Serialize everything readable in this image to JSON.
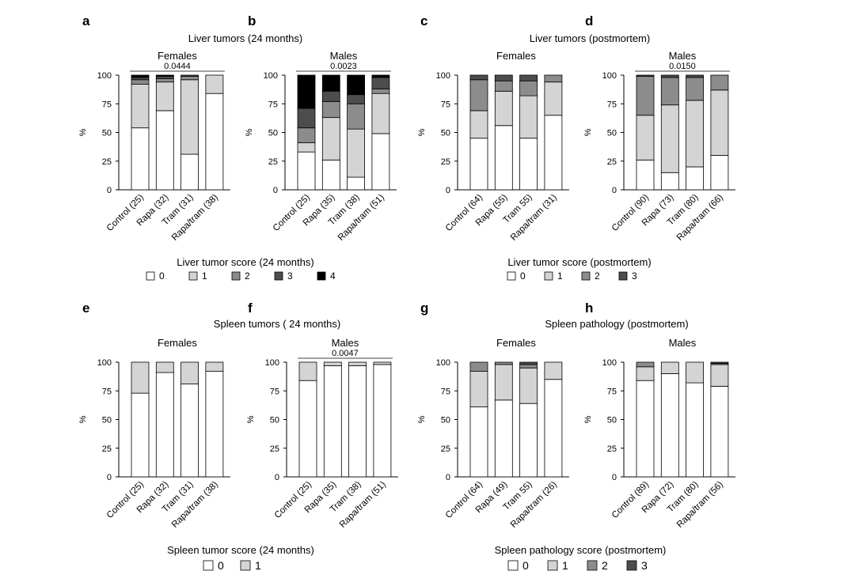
{
  "colors": {
    "0": "#ffffff",
    "1": "#d4d4d4",
    "2": "#8c8c8c",
    "3": "#4d4d4d",
    "4": "#000000",
    "axis": "#000000"
  },
  "sections": [
    {
      "id": "ab",
      "title": "Liver tumors (24 months)"
    },
    {
      "id": "cd",
      "title": "Liver tumors (postmortem)"
    },
    {
      "id": "ef",
      "title": "Spleen tumors ( 24 months)"
    },
    {
      "id": "gh",
      "title": "Spleen pathology (postmortem)"
    }
  ],
  "legends": [
    {
      "id": "liver24",
      "title": "Liver tumor score (24 months)",
      "items": [
        "0",
        "1",
        "2",
        "3",
        "4"
      ]
    },
    {
      "id": "liverpm",
      "title": "Liver tumor score (postmortem)",
      "items": [
        "0",
        "1",
        "2",
        "3"
      ]
    },
    {
      "id": "spleen24",
      "title": "Spleen tumor score (24 months)",
      "items": [
        "0",
        "1"
      ]
    },
    {
      "id": "spleenpm",
      "title": "Spleen pathology score (postmortem)",
      "items": [
        "0",
        "1",
        "2",
        "3"
      ]
    }
  ],
  "chart_data": [
    {
      "panel": "a",
      "type": "bar",
      "stacked": true,
      "title": "Females",
      "ylabel": "%",
      "ylim": [
        0,
        100
      ],
      "yticks": [
        0,
        25,
        50,
        75,
        100
      ],
      "categories": [
        "Control (25)",
        "Rapa (32)",
        "Tram (31)",
        "Rapa/tram (38)"
      ],
      "stack_keys": [
        "0",
        "1",
        "2",
        "3",
        "4"
      ],
      "stacks": [
        [
          54,
          38,
          4,
          2,
          2
        ],
        [
          69,
          25,
          3,
          2,
          1
        ],
        [
          31,
          65,
          3,
          1,
          0
        ],
        [
          84,
          16,
          0,
          0,
          0
        ]
      ],
      "pvalue": {
        "text": "0.0444",
        "from": 0,
        "to": 3
      }
    },
    {
      "panel": "b",
      "type": "bar",
      "stacked": true,
      "title": "Males",
      "ylabel": "%",
      "ylim": [
        0,
        100
      ],
      "yticks": [
        0,
        25,
        50,
        75,
        100
      ],
      "categories": [
        "Control (25)",
        "Rapa (35)",
        "Tram (38)",
        "Rapa/tram (51)"
      ],
      "stack_keys": [
        "0",
        "1",
        "2",
        "3",
        "4"
      ],
      "stacks": [
        [
          33,
          8,
          13,
          17,
          29
        ],
        [
          26,
          37,
          14,
          9,
          14
        ],
        [
          11,
          42,
          22,
          8,
          17
        ],
        [
          49,
          35,
          4,
          10,
          2
        ]
      ],
      "pvalue": {
        "text": "0.0023",
        "from": 0,
        "to": 3
      }
    },
    {
      "panel": "c",
      "type": "bar",
      "stacked": true,
      "title": "Females",
      "ylabel": "%",
      "ylim": [
        0,
        100
      ],
      "yticks": [
        0,
        25,
        50,
        75,
        100
      ],
      "categories": [
        "Control (64)",
        "Rapa (55)",
        "Tram 55)",
        "Rapa/tram (31)"
      ],
      "stack_keys": [
        "0",
        "1",
        "2",
        "3"
      ],
      "stacks": [
        [
          45,
          24,
          27,
          4
        ],
        [
          56,
          30,
          9,
          5
        ],
        [
          45,
          37,
          13,
          5
        ],
        [
          65,
          29,
          6,
          0
        ]
      ]
    },
    {
      "panel": "d",
      "type": "bar",
      "stacked": true,
      "title": "Males",
      "ylabel": "%",
      "ylim": [
        0,
        100
      ],
      "yticks": [
        0,
        25,
        50,
        75,
        100
      ],
      "categories": [
        "Control (90)",
        "Rapa (73)",
        "Tram (80)",
        "Rapa/tram (66)"
      ],
      "stack_keys": [
        "0",
        "1",
        "2",
        "3"
      ],
      "stacks": [
        [
          26,
          39,
          34,
          1
        ],
        [
          15,
          59,
          24,
          2
        ],
        [
          20,
          58,
          20,
          2
        ],
        [
          30,
          57,
          13,
          0
        ]
      ],
      "pvalue": {
        "text": "0.0150",
        "from": 0,
        "to": 3
      }
    },
    {
      "panel": "e",
      "type": "bar",
      "stacked": true,
      "title": "Females",
      "ylabel": "%",
      "ylim": [
        0,
        100
      ],
      "yticks": [
        0,
        25,
        50,
        75,
        100
      ],
      "categories": [
        "Control (25)",
        "Rapa (32)",
        "Tram (31)",
        "Rapa/tram (38)"
      ],
      "stack_keys": [
        "0",
        "1"
      ],
      "stacks": [
        [
          73,
          27
        ],
        [
          91,
          9
        ],
        [
          81,
          19
        ],
        [
          92,
          8
        ]
      ]
    },
    {
      "panel": "f",
      "type": "bar",
      "stacked": true,
      "title": "Males",
      "ylabel": "%",
      "ylim": [
        0,
        100
      ],
      "yticks": [
        0,
        25,
        50,
        75,
        100
      ],
      "categories": [
        "Control (25)",
        "Rapa (35)",
        "Tram (38)",
        "Rapa/tram (51)"
      ],
      "stack_keys": [
        "0",
        "1"
      ],
      "stacks": [
        [
          84,
          16
        ],
        [
          97,
          3
        ],
        [
          97,
          3
        ],
        [
          98,
          2
        ]
      ],
      "pvalue": {
        "text": "0.0047",
        "from": 0,
        "to": 3
      }
    },
    {
      "panel": "g",
      "type": "bar",
      "stacked": true,
      "title": "Females",
      "ylabel": "%",
      "ylim": [
        0,
        100
      ],
      "yticks": [
        0,
        25,
        50,
        75,
        100
      ],
      "categories": [
        "Control (64)",
        "Rapa (49)",
        "Tram 55)",
        "Rapa/tram (26)"
      ],
      "stack_keys": [
        "0",
        "1",
        "2",
        "3"
      ],
      "stacks": [
        [
          61,
          31,
          8,
          0
        ],
        [
          67,
          31,
          2,
          0
        ],
        [
          64,
          31,
          3,
          2
        ],
        [
          85,
          15,
          0,
          0
        ]
      ]
    },
    {
      "panel": "h",
      "type": "bar",
      "stacked": true,
      "title": "Males",
      "ylabel": "%",
      "ylim": [
        0,
        100
      ],
      "yticks": [
        0,
        25,
        50,
        75,
        100
      ],
      "categories": [
        "Control (89)",
        "Rapa (72)",
        "Tram (80)",
        "Rapa/tram (56)"
      ],
      "stack_keys": [
        "0",
        "1",
        "2",
        "3"
      ],
      "stacks": [
        [
          84,
          12,
          4,
          0
        ],
        [
          90,
          10,
          0,
          0
        ],
        [
          82,
          18,
          0,
          0
        ],
        [
          79,
          19,
          1,
          1
        ]
      ]
    }
  ]
}
